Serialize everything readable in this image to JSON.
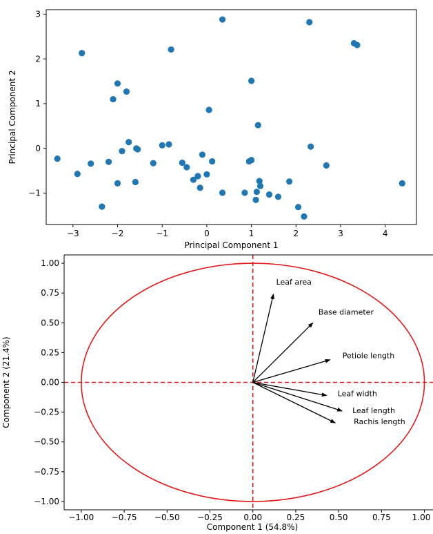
{
  "chart_data": [
    {
      "type": "scatter",
      "xlabel": "Principal Component 1",
      "ylabel": "Principal Component 2",
      "xlim": [
        -3.6,
        4.7
      ],
      "ylim": [
        -1.7,
        3.1
      ],
      "xticks": [
        -3,
        -2,
        -1,
        0,
        1,
        2,
        3,
        4
      ],
      "yticks": [
        -1,
        0,
        1,
        2,
        3
      ],
      "grid": false,
      "color": "#1f77b4",
      "points": [
        [
          -2.8,
          2.13
        ],
        [
          -0.8,
          2.21
        ],
        [
          0.35,
          2.88
        ],
        [
          2.3,
          2.82
        ],
        [
          3.3,
          2.35
        ],
        [
          3.37,
          2.31
        ],
        [
          1.0,
          1.51
        ],
        [
          -2.0,
          1.45
        ],
        [
          -1.8,
          1.27
        ],
        [
          -2.1,
          1.1
        ],
        [
          0.05,
          0.86
        ],
        [
          1.15,
          0.52
        ],
        [
          -1.75,
          0.14
        ],
        [
          -1.58,
          0.0
        ],
        [
          -1.55,
          -0.02
        ],
        [
          -1.9,
          -0.06
        ],
        [
          -1.0,
          0.07
        ],
        [
          -0.85,
          0.09
        ],
        [
          2.33,
          0.04
        ],
        [
          -0.1,
          -0.14
        ],
        [
          -3.35,
          -0.23
        ],
        [
          -2.6,
          -0.34
        ],
        [
          -2.2,
          -0.3
        ],
        [
          -1.2,
          -0.33
        ],
        [
          -0.55,
          -0.32
        ],
        [
          -0.45,
          -0.42
        ],
        [
          0.12,
          -0.29
        ],
        [
          0.95,
          -0.29
        ],
        [
          1.0,
          -0.26
        ],
        [
          2.68,
          -0.38
        ],
        [
          -2.9,
          -0.57
        ],
        [
          -0.2,
          -0.62
        ],
        [
          -0.3,
          -0.7
        ],
        [
          0.0,
          -0.58
        ],
        [
          -2.0,
          -0.78
        ],
        [
          -1.6,
          -0.75
        ],
        [
          -0.15,
          -0.88
        ],
        [
          0.35,
          -0.99
        ],
        [
          0.85,
          -0.99
        ],
        [
          1.12,
          -0.97
        ],
        [
          1.18,
          -0.73
        ],
        [
          1.2,
          -0.84
        ],
        [
          1.85,
          -0.74
        ],
        [
          1.4,
          -1.03
        ],
        [
          1.6,
          -1.08
        ],
        [
          1.1,
          -1.15
        ],
        [
          4.38,
          -0.78
        ],
        [
          -2.35,
          -1.3
        ],
        [
          2.05,
          -1.31
        ],
        [
          2.18,
          -1.52
        ]
      ]
    },
    {
      "type": "biplot",
      "xlabel": "Component 1 (54.8%)",
      "ylabel": "Component 2 (21.4%)",
      "xlim": [
        -1.1,
        1.05
      ],
      "ylim": [
        -1.07,
        1.07
      ],
      "xticks": [
        -1.0,
        -0.75,
        -0.5,
        -0.25,
        0.0,
        0.25,
        0.5,
        0.75,
        1.0
      ],
      "yticks": [
        -1.0,
        -0.75,
        -0.5,
        -0.25,
        0.0,
        0.25,
        0.5,
        0.75,
        1.0
      ],
      "circle_radius": 1.0,
      "circle_color": "#e31a1c",
      "arrow_color": "#000000",
      "vectors": [
        {
          "name": "Leaf area",
          "x": 0.12,
          "y": 0.74
        },
        {
          "name": "Base diameter",
          "x": 0.35,
          "y": 0.5
        },
        {
          "name": "Petiole length",
          "x": 0.45,
          "y": 0.19
        },
        {
          "name": "Leaf width",
          "x": 0.43,
          "y": -0.11
        },
        {
          "name": "Leaf length",
          "x": 0.52,
          "y": -0.24
        },
        {
          "name": "Rachis length",
          "x": 0.48,
          "y": -0.34
        }
      ]
    }
  ]
}
